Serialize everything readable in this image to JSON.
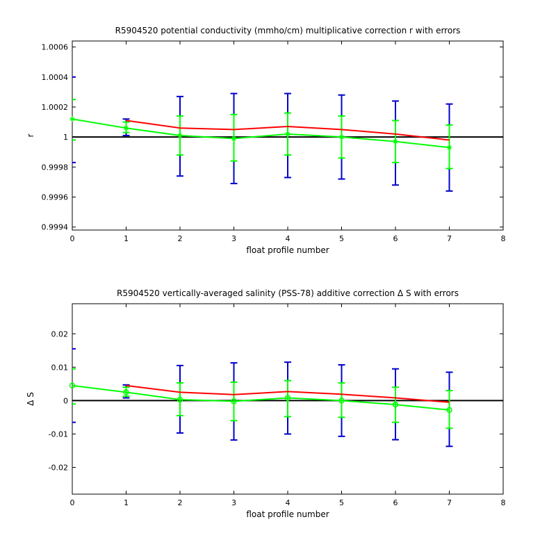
{
  "chart_data": [
    {
      "type": "line",
      "title": "R5904520 potential conductivity (mmho/cm) multiplicative correction r with errors",
      "xlabel": "float profile number",
      "ylabel": "r",
      "xlim": [
        0,
        8
      ],
      "ylim": [
        0.99938,
        1.00064
      ],
      "x_ticks": [
        0,
        1,
        2,
        3,
        4,
        5,
        6,
        7,
        8
      ],
      "x_tick_labels": [
        "0",
        "1",
        "2",
        "3",
        "4",
        "5",
        "6",
        "7",
        "8"
      ],
      "y_ticks": [
        0.9994,
        0.9996,
        0.9998,
        1.0,
        1.0002,
        1.0004,
        1.0006
      ],
      "y_tick_labels": [
        "0.9994",
        "0.9996",
        "0.9998",
        "1",
        "1.0002",
        "1.0004",
        "1.0006"
      ],
      "reference_line": 1.0,
      "grid": false,
      "colors": {
        "red": "#ff0000",
        "green": "#00ff00",
        "blue": "#0000cc",
        "reference": "#000000"
      },
      "series": [
        {
          "color": "red",
          "x": [
            1,
            2,
            3,
            4,
            5,
            6,
            7
          ],
          "y": [
            1.00011,
            1.00006,
            1.00005,
            1.00007,
            1.00005,
            1.00002,
            0.99998
          ]
        },
        {
          "color": "green",
          "x": [
            0,
            1,
            2,
            3,
            4,
            5,
            6,
            7
          ],
          "y": [
            1.00012,
            1.00006,
            1.00001,
            0.99999,
            1.00002,
            1.0,
            0.99997,
            0.99993
          ]
        }
      ],
      "error_bars_outer": [
        {
          "x": 1,
          "y": 1.00006,
          "lower": 1.00001,
          "upper": 1.00012
        },
        {
          "x": 2,
          "y": 1.00001,
          "lower": 0.99974,
          "upper": 1.00027
        },
        {
          "x": 3,
          "y": 0.99999,
          "lower": 0.99969,
          "upper": 1.00029
        },
        {
          "x": 4,
          "y": 1.00002,
          "lower": 0.99973,
          "upper": 1.00029
        },
        {
          "x": 5,
          "y": 1.0,
          "lower": 0.99972,
          "upper": 1.00028
        },
        {
          "x": 6,
          "y": 0.99997,
          "lower": 0.99968,
          "upper": 1.00024
        },
        {
          "x": 7,
          "y": 0.99993,
          "lower": 0.99964,
          "upper": 1.00022
        }
      ],
      "error_bars_inner": [
        {
          "x": 1,
          "y": 1.00006,
          "lower": 1.00003,
          "upper": 1.0001
        },
        {
          "x": 2,
          "y": 1.00001,
          "lower": 0.99988,
          "upper": 1.00014
        },
        {
          "x": 3,
          "y": 0.99999,
          "lower": 0.99984,
          "upper": 1.00015
        },
        {
          "x": 4,
          "y": 1.00002,
          "lower": 0.99988,
          "upper": 1.00016
        },
        {
          "x": 5,
          "y": 1.0,
          "lower": 0.99986,
          "upper": 1.00014
        },
        {
          "x": 6,
          "y": 0.99997,
          "lower": 0.99983,
          "upper": 1.00011
        },
        {
          "x": 7,
          "y": 0.99993,
          "lower": 0.99979,
          "upper": 1.00008
        }
      ],
      "edge_error_marks": [
        {
          "x": 0,
          "color": "blue",
          "y": [
            1.0004,
            0.99983
          ]
        },
        {
          "x": 0,
          "color": "green",
          "y": [
            1.00025,
            0.99998
          ]
        }
      ],
      "marker": "star"
    },
    {
      "type": "line",
      "title": "R5904520 vertically-averaged salinity (PSS-78) additive correction Δ S with errors",
      "xlabel": "float profile number",
      "ylabel": "Δ S",
      "xlim": [
        0,
        8
      ],
      "ylim": [
        -0.028,
        0.029
      ],
      "x_ticks": [
        0,
        1,
        2,
        3,
        4,
        5,
        6,
        7,
        8
      ],
      "x_tick_labels": [
        "0",
        "1",
        "2",
        "3",
        "4",
        "5",
        "6",
        "7",
        "8"
      ],
      "y_ticks": [
        -0.02,
        -0.01,
        0,
        0.01,
        0.02
      ],
      "y_tick_labels": [
        "-0.02",
        "-0.01",
        "0",
        "0.01",
        "0.02"
      ],
      "reference_line": 0,
      "grid": false,
      "colors": {
        "red": "#ff0000",
        "green": "#00ff00",
        "blue": "#0000cc",
        "reference": "#000000"
      },
      "series": [
        {
          "color": "red",
          "x": [
            1,
            2,
            3,
            4,
            5,
            6,
            7
          ],
          "y": [
            0.0045,
            0.0025,
            0.0018,
            0.0027,
            0.0019,
            0.0008,
            -0.0005
          ]
        },
        {
          "color": "green",
          "x": [
            0,
            1,
            2,
            3,
            4,
            5,
            6,
            7
          ],
          "y": [
            0.0045,
            0.0025,
            0.0003,
            -0.0002,
            0.0008,
            0.0,
            -0.0012,
            -0.0028
          ]
        }
      ],
      "error_bars_outer": [
        {
          "x": 1,
          "y": 0.0025,
          "lower": 0.0008,
          "upper": 0.0047
        },
        {
          "x": 2,
          "y": 0.0003,
          "lower": -0.0097,
          "upper": 0.0105
        },
        {
          "x": 3,
          "y": -0.0002,
          "lower": -0.0118,
          "upper": 0.0113
        },
        {
          "x": 4,
          "y": 0.0008,
          "lower": -0.01,
          "upper": 0.0115
        },
        {
          "x": 5,
          "y": 0.0,
          "lower": -0.0107,
          "upper": 0.0107
        },
        {
          "x": 6,
          "y": -0.0012,
          "lower": -0.0117,
          "upper": 0.0095
        },
        {
          "x": 7,
          "y": -0.0028,
          "lower": -0.0137,
          "upper": 0.0085
        }
      ],
      "error_bars_inner": [
        {
          "x": 1,
          "y": 0.0025,
          "lower": 0.0013,
          "upper": 0.004
        },
        {
          "x": 2,
          "y": 0.0003,
          "lower": -0.0045,
          "upper": 0.0053
        },
        {
          "x": 3,
          "y": -0.0002,
          "lower": -0.006,
          "upper": 0.0055
        },
        {
          "x": 4,
          "y": 0.0008,
          "lower": -0.0048,
          "upper": 0.006
        },
        {
          "x": 5,
          "y": 0.0,
          "lower": -0.005,
          "upper": 0.0053
        },
        {
          "x": 6,
          "y": -0.0012,
          "lower": -0.0065,
          "upper": 0.004
        },
        {
          "x": 7,
          "y": -0.0028,
          "lower": -0.0083,
          "upper": 0.003
        }
      ],
      "edge_error_marks": [
        {
          "x": 0,
          "color": "blue",
          "y": [
            0.0155,
            -0.0065
          ]
        },
        {
          "x": 0,
          "color": "green",
          "y": [
            0.0095,
            -0.001
          ]
        }
      ],
      "marker": "circle"
    }
  ]
}
